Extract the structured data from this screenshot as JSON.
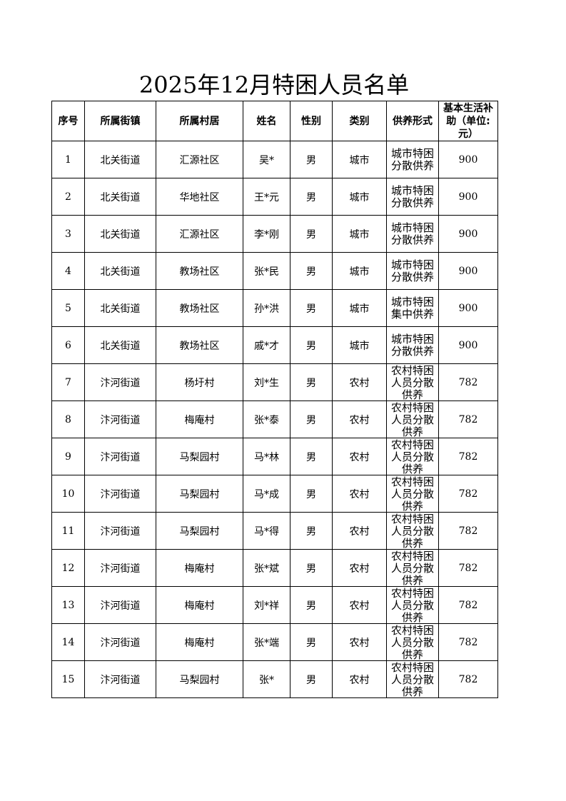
{
  "title": "2025年12月特困人员名单",
  "headers": [
    "序号",
    "所属街镇",
    "所属村居",
    "姓名",
    "性别",
    "类别",
    "供养形式",
    "基本生活补助（单位:元）"
  ],
  "rows": [
    [
      "1",
      "北关街道",
      "汇源社区",
      "吴*",
      "男",
      "城市",
      "城市特困分散供养",
      "900"
    ],
    [
      "2",
      "北关街道",
      "华地社区",
      "王*元",
      "男",
      "城市",
      "城市特困分散供养",
      "900"
    ],
    [
      "3",
      "北关街道",
      "汇源社区",
      "李*刚",
      "男",
      "城市",
      "城市特困分散供养",
      "900"
    ],
    [
      "4",
      "北关街道",
      "教场社区",
      "张*民",
      "男",
      "城市",
      "城市特困分散供养",
      "900"
    ],
    [
      "5",
      "北关街道",
      "教场社区",
      "孙*洪",
      "男",
      "城市",
      "城市特困集中供养",
      "900"
    ],
    [
      "6",
      "北关街道",
      "教场社区",
      "戚*才",
      "男",
      "城市",
      "城市特困分散供养",
      "900"
    ],
    [
      "7",
      "汴河街道",
      "杨圩村",
      "刘*生",
      "男",
      "农村",
      "农村特困人员分散供养",
      "782"
    ],
    [
      "8",
      "汴河街道",
      "梅庵村",
      "张*泰",
      "男",
      "农村",
      "农村特困人员分散供养",
      "782"
    ],
    [
      "9",
      "汴河街道",
      "马梨园村",
      "马*林",
      "男",
      "农村",
      "农村特困人员分散供养",
      "782"
    ],
    [
      "10",
      "汴河街道",
      "马梨园村",
      "马*成",
      "男",
      "农村",
      "农村特困人员分散供养",
      "782"
    ],
    [
      "11",
      "汴河街道",
      "马梨园村",
      "马*得",
      "男",
      "农村",
      "农村特困人员分散供养",
      "782"
    ],
    [
      "12",
      "汴河街道",
      "梅庵村",
      "张*斌",
      "男",
      "农村",
      "农村特困人员分散供养",
      "782"
    ],
    [
      "13",
      "汴河街道",
      "梅庵村",
      "刘*祥",
      "男",
      "农村",
      "农村特困人员分散供养",
      "782"
    ],
    [
      "14",
      "汴河街道",
      "梅庵村",
      "张*端",
      "男",
      "农村",
      "农村特困人员分散供养",
      "782"
    ],
    [
      "15",
      "汴河街道",
      "马梨园村",
      "张*",
      "男",
      "农村",
      "农村特困人员分散供养",
      "782"
    ]
  ]
}
